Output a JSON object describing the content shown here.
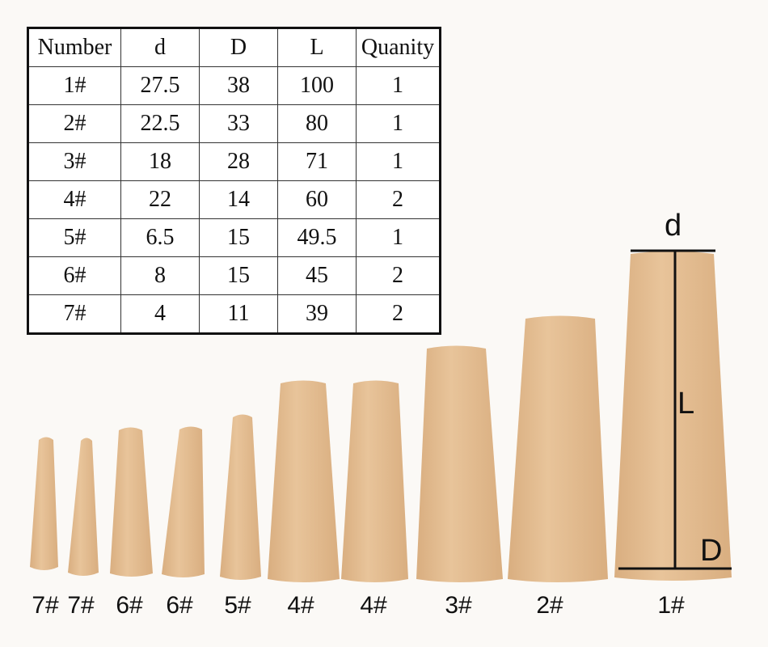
{
  "table": {
    "headers": [
      "Number",
      "d",
      "D",
      "L",
      "Quanity"
    ],
    "rows": [
      [
        "1#",
        "27.5",
        "38",
        "100",
        "1"
      ],
      [
        "2#",
        "22.5",
        "33",
        "80",
        "1"
      ],
      [
        "3#",
        "18",
        "28",
        "71",
        "1"
      ],
      [
        "4#",
        "22",
        "14",
        "60",
        "2"
      ],
      [
        "5#",
        "6.5",
        "15",
        "49.5",
        "1"
      ],
      [
        "6#",
        "8",
        "15",
        "45",
        "2"
      ],
      [
        "7#",
        "4",
        "11",
        "39",
        "2"
      ]
    ]
  },
  "plug_labels": [
    "7#",
    "7#",
    "6#",
    "6#",
    "5#",
    "4#",
    "4#",
    "3#",
    "2#",
    "1#"
  ],
  "dimension_labels": {
    "top": "d",
    "length": "L",
    "bottom": "D"
  },
  "colors": {
    "wood": "#e8c49a",
    "wood_shade": "#d9ae80",
    "background": "#fbf9f6"
  }
}
